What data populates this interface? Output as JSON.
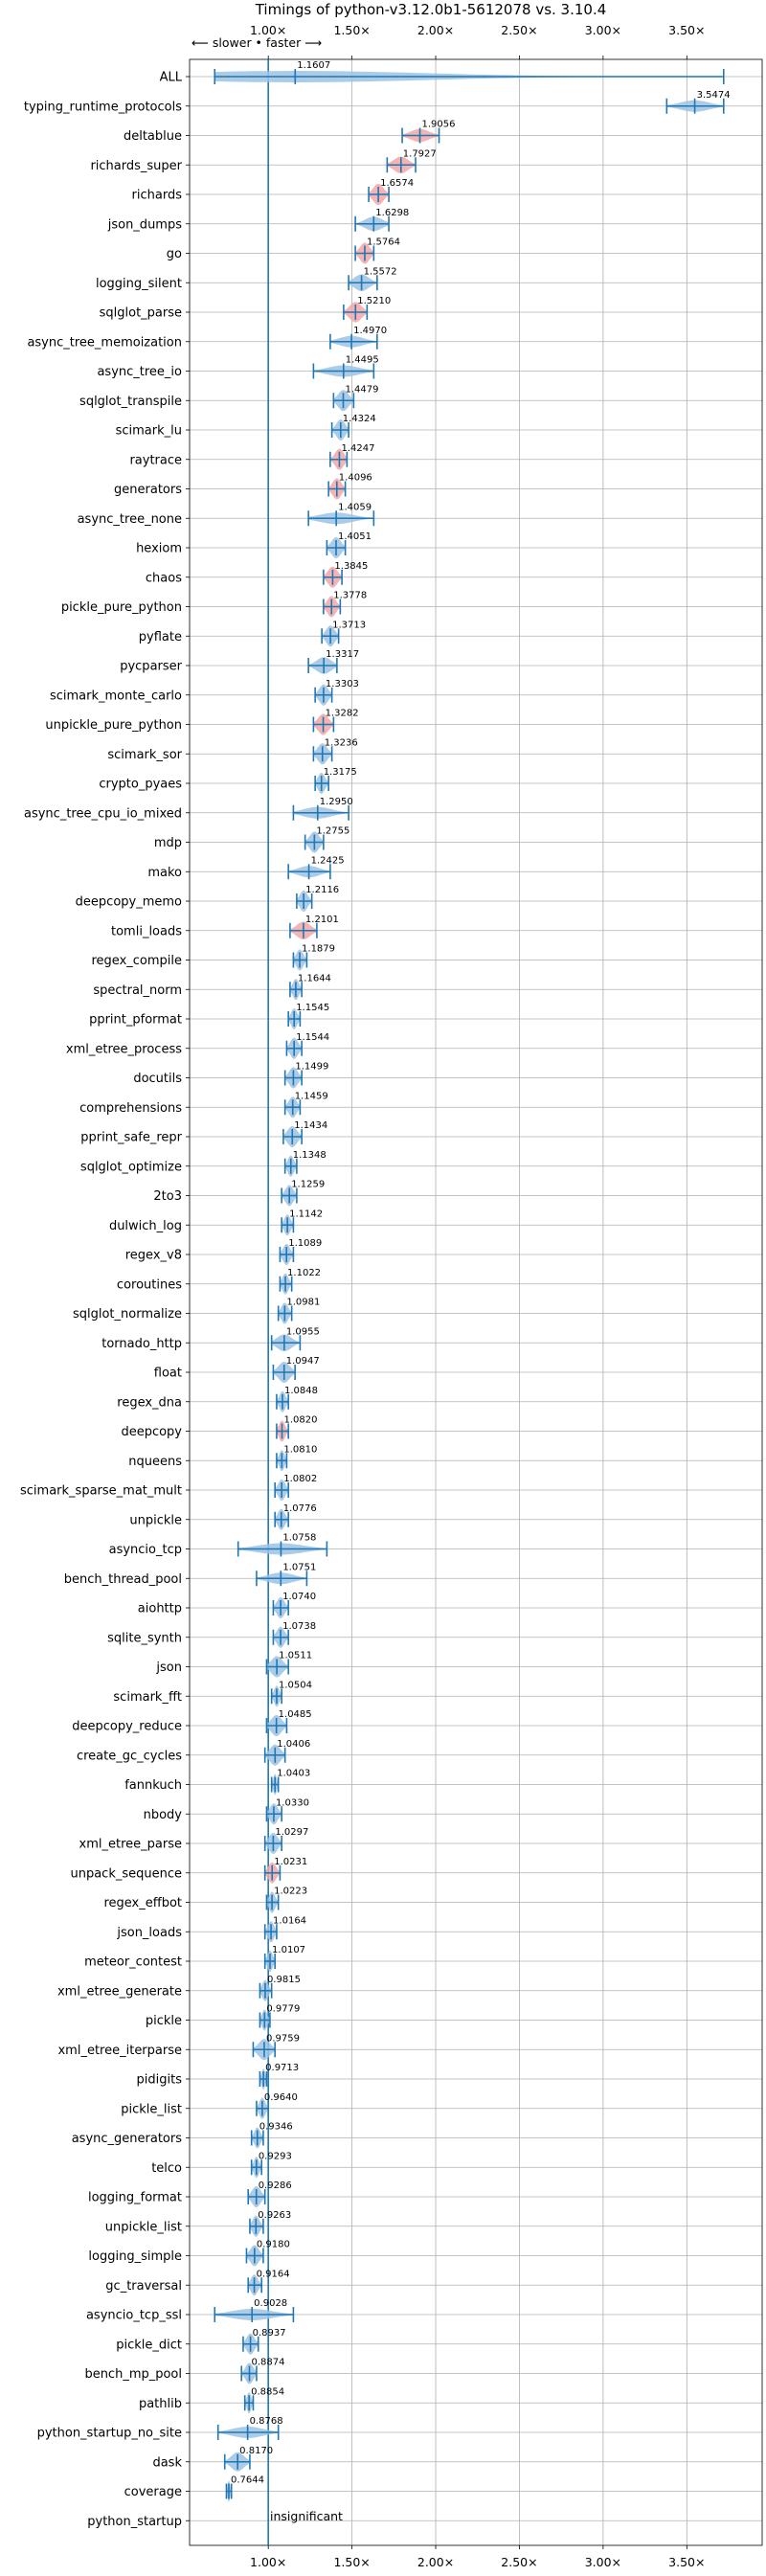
{
  "chart_data": {
    "type": "violin",
    "title": "Timings of python-v3.12.0b1-5612078 vs. 3.10.4",
    "direction_note": "⟵ slower • faster ⟶",
    "xlabel": "",
    "ylabel": "",
    "x_tick_labels": [
      "1.00×",
      "1.50×",
      "2.00×",
      "2.50×",
      "3.00×",
      "3.50×"
    ],
    "x_ticks": [
      1.0,
      1.5,
      2.0,
      2.5,
      3.0,
      3.5
    ],
    "xlim": [
      0.53,
      3.95
    ],
    "grid": true,
    "reference_line": 1.0,
    "annotation": "insignificant",
    "colors": {
      "faster": "#9dc2e3",
      "slower": "#f3a6a6",
      "line": "#1f77b4"
    },
    "benchmarks": [
      {
        "name": "ALL",
        "value": 1.1607,
        "low": 0.68,
        "high": 3.72
      },
      {
        "name": "typing_runtime_protocols",
        "value": 3.5474,
        "low": 3.38,
        "high": 3.72
      },
      {
        "name": "deltablue",
        "value": 1.9056,
        "low": 1.8,
        "high": 2.02,
        "slower": true
      },
      {
        "name": "richards_super",
        "value": 1.7927,
        "low": 1.71,
        "high": 1.88,
        "slower": true
      },
      {
        "name": "richards",
        "value": 1.6574,
        "low": 1.6,
        "high": 1.72,
        "slower": true
      },
      {
        "name": "json_dumps",
        "value": 1.6298,
        "low": 1.52,
        "high": 1.72
      },
      {
        "name": "go",
        "value": 1.5764,
        "low": 1.52,
        "high": 1.63,
        "slower": true
      },
      {
        "name": "logging_silent",
        "value": 1.5572,
        "low": 1.48,
        "high": 1.65
      },
      {
        "name": "sqlglot_parse",
        "value": 1.521,
        "low": 1.45,
        "high": 1.59,
        "slower": true
      },
      {
        "name": "async_tree_memoization",
        "value": 1.497,
        "low": 1.37,
        "high": 1.65
      },
      {
        "name": "async_tree_io",
        "value": 1.4495,
        "low": 1.27,
        "high": 1.63
      },
      {
        "name": "sqlglot_transpile",
        "value": 1.4479,
        "low": 1.39,
        "high": 1.51
      },
      {
        "name": "scimark_lu",
        "value": 1.4324,
        "low": 1.38,
        "high": 1.48
      },
      {
        "name": "raytrace",
        "value": 1.4247,
        "low": 1.37,
        "high": 1.47,
        "slower": true
      },
      {
        "name": "generators",
        "value": 1.4096,
        "low": 1.36,
        "high": 1.46,
        "slower": true
      },
      {
        "name": "async_tree_none",
        "value": 1.4059,
        "low": 1.24,
        "high": 1.63
      },
      {
        "name": "hexiom",
        "value": 1.4051,
        "low": 1.35,
        "high": 1.46
      },
      {
        "name": "chaos",
        "value": 1.3845,
        "low": 1.33,
        "high": 1.44,
        "slower": true
      },
      {
        "name": "pickle_pure_python",
        "value": 1.3778,
        "low": 1.33,
        "high": 1.43,
        "slower": true
      },
      {
        "name": "pyflate",
        "value": 1.3713,
        "low": 1.32,
        "high": 1.42
      },
      {
        "name": "pycparser",
        "value": 1.3317,
        "low": 1.24,
        "high": 1.41
      },
      {
        "name": "scimark_monte_carlo",
        "value": 1.3303,
        "low": 1.28,
        "high": 1.38
      },
      {
        "name": "unpickle_pure_python",
        "value": 1.3282,
        "low": 1.27,
        "high": 1.39,
        "slower": true
      },
      {
        "name": "scimark_sor",
        "value": 1.3236,
        "low": 1.27,
        "high": 1.38
      },
      {
        "name": "crypto_pyaes",
        "value": 1.3175,
        "low": 1.28,
        "high": 1.36
      },
      {
        "name": "async_tree_cpu_io_mixed",
        "value": 1.295,
        "low": 1.15,
        "high": 1.48
      },
      {
        "name": "mdp",
        "value": 1.2755,
        "low": 1.22,
        "high": 1.33
      },
      {
        "name": "mako",
        "value": 1.2425,
        "low": 1.12,
        "high": 1.37
      },
      {
        "name": "deepcopy_memo",
        "value": 1.2116,
        "low": 1.17,
        "high": 1.26
      },
      {
        "name": "tomli_loads",
        "value": 1.2101,
        "low": 1.13,
        "high": 1.29,
        "slower": true
      },
      {
        "name": "regex_compile",
        "value": 1.1879,
        "low": 1.15,
        "high": 1.23
      },
      {
        "name": "spectral_norm",
        "value": 1.1644,
        "low": 1.13,
        "high": 1.2
      },
      {
        "name": "pprint_pformat",
        "value": 1.1545,
        "low": 1.12,
        "high": 1.19
      },
      {
        "name": "xml_etree_process",
        "value": 1.1544,
        "low": 1.11,
        "high": 1.2
      },
      {
        "name": "docutils",
        "value": 1.1499,
        "low": 1.1,
        "high": 1.2
      },
      {
        "name": "comprehensions",
        "value": 1.1459,
        "low": 1.1,
        "high": 1.19
      },
      {
        "name": "pprint_safe_repr",
        "value": 1.1434,
        "low": 1.09,
        "high": 1.2
      },
      {
        "name": "sqlglot_optimize",
        "value": 1.1348,
        "low": 1.1,
        "high": 1.17
      },
      {
        "name": "2to3",
        "value": 1.1259,
        "low": 1.08,
        "high": 1.17
      },
      {
        "name": "dulwich_log",
        "value": 1.1142,
        "low": 1.08,
        "high": 1.15
      },
      {
        "name": "regex_v8",
        "value": 1.1089,
        "low": 1.07,
        "high": 1.15
      },
      {
        "name": "coroutines",
        "value": 1.1022,
        "low": 1.07,
        "high": 1.14
      },
      {
        "name": "sqlglot_normalize",
        "value": 1.0981,
        "low": 1.06,
        "high": 1.14
      },
      {
        "name": "tornado_http",
        "value": 1.0955,
        "low": 1.02,
        "high": 1.19
      },
      {
        "name": "float",
        "value": 1.0947,
        "low": 1.03,
        "high": 1.16
      },
      {
        "name": "regex_dna",
        "value": 1.0848,
        "low": 1.05,
        "high": 1.12
      },
      {
        "name": "deepcopy",
        "value": 1.082,
        "low": 1.05,
        "high": 1.12,
        "slower": true
      },
      {
        "name": "nqueens",
        "value": 1.081,
        "low": 1.05,
        "high": 1.11
      },
      {
        "name": "scimark_sparse_mat_mult",
        "value": 1.0802,
        "low": 1.04,
        "high": 1.12
      },
      {
        "name": "unpickle",
        "value": 1.0776,
        "low": 1.04,
        "high": 1.12
      },
      {
        "name": "asyncio_tcp",
        "value": 1.0758,
        "low": 0.82,
        "high": 1.35
      },
      {
        "name": "bench_thread_pool",
        "value": 1.0751,
        "low": 0.93,
        "high": 1.23
      },
      {
        "name": "aiohttp",
        "value": 1.074,
        "low": 1.03,
        "high": 1.12
      },
      {
        "name": "sqlite_synth",
        "value": 1.0738,
        "low": 1.03,
        "high": 1.12
      },
      {
        "name": "json",
        "value": 1.0511,
        "low": 0.99,
        "high": 1.12
      },
      {
        "name": "scimark_fft",
        "value": 1.0504,
        "low": 1.02,
        "high": 1.08
      },
      {
        "name": "deepcopy_reduce",
        "value": 1.0485,
        "low": 0.99,
        "high": 1.11
      },
      {
        "name": "create_gc_cycles",
        "value": 1.0406,
        "low": 0.98,
        "high": 1.1
      },
      {
        "name": "fannkuch",
        "value": 1.0403,
        "low": 1.02,
        "high": 1.06
      },
      {
        "name": "nbody",
        "value": 1.033,
        "low": 0.99,
        "high": 1.08
      },
      {
        "name": "xml_etree_parse",
        "value": 1.0297,
        "low": 0.98,
        "high": 1.08
      },
      {
        "name": "unpack_sequence",
        "value": 1.0231,
        "low": 0.98,
        "high": 1.07,
        "slower": true
      },
      {
        "name": "regex_effbot",
        "value": 1.0223,
        "low": 0.99,
        "high": 1.06
      },
      {
        "name": "json_loads",
        "value": 1.0164,
        "low": 0.98,
        "high": 1.05
      },
      {
        "name": "meteor_contest",
        "value": 1.0107,
        "low": 0.98,
        "high": 1.04
      },
      {
        "name": "xml_etree_generate",
        "value": 0.9815,
        "low": 0.95,
        "high": 1.02
      },
      {
        "name": "pickle",
        "value": 0.9779,
        "low": 0.95,
        "high": 1.01
      },
      {
        "name": "xml_etree_iterparse",
        "value": 0.9759,
        "low": 0.91,
        "high": 1.04
      },
      {
        "name": "pidigits",
        "value": 0.9713,
        "low": 0.95,
        "high": 0.99
      },
      {
        "name": "pickle_list",
        "value": 0.964,
        "low": 0.93,
        "high": 1.0
      },
      {
        "name": "async_generators",
        "value": 0.9346,
        "low": 0.9,
        "high": 0.97
      },
      {
        "name": "telco",
        "value": 0.9293,
        "low": 0.9,
        "high": 0.96
      },
      {
        "name": "logging_format",
        "value": 0.9286,
        "low": 0.88,
        "high": 0.98
      },
      {
        "name": "unpickle_list",
        "value": 0.9263,
        "low": 0.89,
        "high": 0.97
      },
      {
        "name": "logging_simple",
        "value": 0.918,
        "low": 0.87,
        "high": 0.97
      },
      {
        "name": "gc_traversal",
        "value": 0.9164,
        "low": 0.88,
        "high": 0.96
      },
      {
        "name": "asyncio_tcp_ssl",
        "value": 0.9028,
        "low": 0.68,
        "high": 1.15
      },
      {
        "name": "pickle_dict",
        "value": 0.8937,
        "low": 0.85,
        "high": 0.94
      },
      {
        "name": "bench_mp_pool",
        "value": 0.8874,
        "low": 0.84,
        "high": 0.93
      },
      {
        "name": "pathlib",
        "value": 0.8854,
        "low": 0.86,
        "high": 0.91
      },
      {
        "name": "python_startup_no_site",
        "value": 0.8768,
        "low": 0.7,
        "high": 1.06
      },
      {
        "name": "dask",
        "value": 0.817,
        "low": 0.74,
        "high": 0.89
      },
      {
        "name": "coverage",
        "value": 0.7644,
        "low": 0.75,
        "high": 0.78
      },
      {
        "name": "python_startup",
        "value": null,
        "low": null,
        "high": null
      }
    ]
  }
}
